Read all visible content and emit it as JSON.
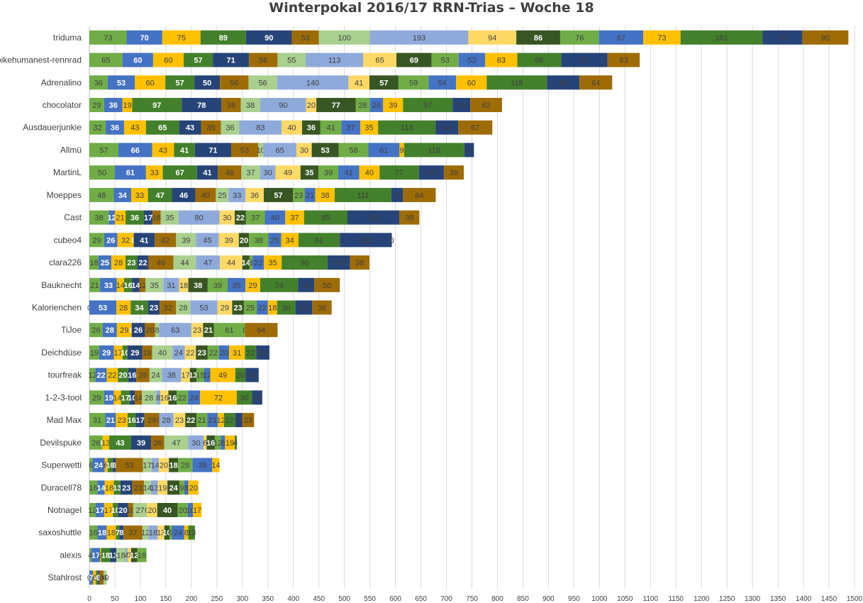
{
  "chart_data": {
    "type": "bar",
    "orientation": "horizontal",
    "stacked": true,
    "title": "Winterpokal 2016/17 RRN-Trias – Woche 18",
    "xlim": [
      0,
      1500
    ],
    "xticks": [
      0,
      50,
      100,
      150,
      200,
      250,
      300,
      350,
      400,
      450,
      500,
      550,
      600,
      650,
      700,
      750,
      800,
      850,
      900,
      950,
      1000,
      1050,
      1100,
      1150,
      1200,
      1250,
      1300,
      1350,
      1400,
      1450,
      1500
    ],
    "grid": "vertical",
    "legend": "none",
    "palette": [
      "#70ad47",
      "#4472c4",
      "#ffc000",
      "#43802b",
      "#264478",
      "#9e6c07",
      "#a9d08e",
      "#8eaadb",
      "#ffd966",
      "#375623"
    ],
    "categories": [
      "triduma",
      "bikehumanest-rennrad",
      "Adrenalino",
      "chocolator",
      "Ausdauerjunkie",
      "Allmü",
      "MartinL",
      "Moeppes",
      "Cast",
      "cubeo4",
      "clara226",
      "Bauknecht",
      "Kalorienchen",
      "TiJoe",
      "Deichdüse",
      "tourfreak",
      "1-2-3-tool",
      "Mad Max",
      "Devilspuke",
      "Superwetti",
      "Duracell78",
      "Notnagel",
      "saxoshuttle",
      "alexis",
      "Stahlrost"
    ],
    "rows": [
      [
        73,
        70,
        75,
        89,
        90,
        53,
        100,
        193,
        94,
        86,
        76,
        87,
        73,
        161,
        78,
        90
      ],
      [
        65,
        60,
        60,
        57,
        71,
        56,
        55,
        113,
        65,
        69,
        53,
        52,
        63,
        86,
        91,
        63
      ],
      [
        36,
        53,
        60,
        57,
        50,
        56,
        56,
        140,
        41,
        57,
        59,
        54,
        60,
        118,
        64,
        64
      ],
      [
        29,
        36,
        19,
        97,
        78,
        38,
        38,
        90,
        20,
        77,
        28,
        26,
        39,
        97,
        35,
        62
      ],
      [
        32,
        36,
        43,
        65,
        43,
        39,
        36,
        83,
        40,
        36,
        41,
        37,
        35,
        113,
        44,
        67
      ],
      [
        57,
        66,
        43,
        41,
        71,
        53,
        10,
        65,
        30,
        53,
        58,
        61,
        9,
        118,
        19,
        0
      ],
      [
        50,
        61,
        33,
        67,
        41,
        46,
        37,
        30,
        49,
        35,
        39,
        41,
        40,
        77,
        49,
        39
      ],
      [
        48,
        34,
        33,
        47,
        46,
        40,
        25,
        33,
        36,
        57,
        23,
        21,
        38,
        111,
        23,
        64
      ],
      [
        38,
        12,
        21,
        36,
        17,
        16,
        35,
        80,
        30,
        22,
        37,
        40,
        37,
        85,
        102,
        39
      ],
      [
        29,
        26,
        32,
        0,
        41,
        42,
        39,
        45,
        39,
        20,
        38,
        25,
        34,
        81,
        102,
        0
      ],
      [
        18,
        25,
        28,
        23,
        22,
        49,
        44,
        47,
        44,
        14,
        6,
        22,
        35,
        90,
        44,
        38
      ],
      [
        21,
        33,
        14,
        16,
        14,
        12,
        35,
        31,
        18,
        38,
        39,
        35,
        29,
        74,
        32,
        50
      ],
      [
        0,
        53,
        28,
        34,
        23,
        32,
        28,
        53,
        29,
        23,
        25,
        22,
        18,
        36,
        33,
        38
      ],
      [
        26,
        28,
        29,
        0,
        26,
        20,
        8,
        63,
        23,
        21,
        61,
        0,
        0,
        0,
        0,
        64
      ],
      [
        19,
        29,
        17,
        10,
        29,
        19,
        40,
        24,
        22,
        23,
        22,
        20,
        31,
        22,
        26,
        0
      ],
      [
        12,
        22,
        22,
        20,
        16,
        26,
        24,
        38,
        17,
        13,
        15,
        12,
        49,
        20,
        26,
        0
      ],
      [
        29,
        19,
        14,
        17,
        10,
        14,
        28,
        8,
        16,
        16,
        22,
        24,
        72,
        30,
        20,
        0
      ],
      [
        31,
        21,
        23,
        16,
        17,
        29,
        0,
        28,
        23,
        22,
        21,
        21,
        12,
        22,
        14,
        23
      ],
      [
        26,
        0,
        13,
        43,
        39,
        26,
        47,
        30,
        6,
        16,
        12,
        8,
        19,
        4,
        0,
        0
      ],
      [
        6,
        24,
        6,
        10,
        6,
        53,
        17,
        14,
        20,
        18,
        28,
        39,
        14,
        0,
        0,
        0
      ],
      [
        16,
        14,
        18,
        13,
        23,
        23,
        14,
        13,
        19,
        24,
        9,
        8,
        20,
        0,
        0,
        0
      ],
      [
        12,
        17,
        17,
        10,
        20,
        10,
        27,
        0,
        20,
        40,
        20,
        10,
        17,
        0,
        0,
        0
      ],
      [
        16,
        18,
        18,
        7,
        8,
        37,
        12,
        18,
        13,
        10,
        5,
        24,
        8,
        13,
        0,
        0
      ],
      [
        4,
        17,
        2,
        18,
        12,
        0,
        18,
        4,
        7,
        12,
        18,
        0,
        0,
        0,
        0,
        0
      ],
      [
        0,
        7,
        6,
        4,
        3,
        8,
        6,
        0,
        0,
        0,
        0,
        0,
        0,
        0,
        0,
        0
      ]
    ],
    "labels": [
      [
        "73",
        "70",
        "75",
        "89",
        "90",
        "53",
        "100",
        "193",
        "94",
        "86",
        "76",
        "87",
        "73",
        "161",
        "78",
        "90"
      ],
      [
        "65",
        "60",
        "60",
        "57",
        "71",
        "56",
        "55",
        "113",
        "65",
        "69",
        "53",
        "52",
        "63",
        "86",
        "91",
        "63"
      ],
      [
        "36",
        "53",
        "60",
        "57",
        "50",
        "56",
        "56",
        "140",
        "41",
        "57",
        "59",
        "54",
        "60",
        "118",
        "64",
        "64"
      ],
      [
        "29",
        "36",
        "19",
        "97",
        "78",
        "38",
        "38",
        "90",
        "20",
        "77",
        "28",
        "26",
        "39",
        "97",
        "35",
        "62"
      ],
      [
        "32",
        "36",
        "43",
        "65",
        "43",
        "39",
        "36",
        "83",
        "40",
        "36",
        "41",
        "37",
        "35",
        "113",
        "44",
        "67"
      ],
      [
        "57",
        "66",
        "43",
        "41",
        "71",
        "53",
        "10",
        "65",
        "30",
        "53",
        "58",
        "61",
        "9",
        "118",
        "19",
        ""
      ],
      [
        "50",
        "61",
        "33",
        "67",
        "41",
        "46",
        "37",
        "30",
        "49",
        "35",
        "39",
        "41",
        "40",
        "77",
        "49",
        "39"
      ],
      [
        "48",
        "34",
        "33",
        "47",
        "46",
        "40",
        "25",
        "33",
        "36",
        "57",
        "23",
        "21",
        "38",
        "111",
        "23",
        "64"
      ],
      [
        "38",
        "12",
        "21",
        "36",
        "17",
        "16",
        "35",
        "80",
        "30",
        "22",
        "37",
        "40",
        "37",
        "85",
        "102",
        "39"
      ],
      [
        "29",
        "26",
        "32",
        "0",
        "41",
        "42",
        "39",
        "45",
        "39",
        "20",
        "38",
        "25",
        "34",
        "81",
        "102",
        "0"
      ],
      [
        "18",
        "25",
        "28",
        "23",
        "22",
        "49",
        "44",
        "47",
        "44",
        "14",
        "6",
        "22",
        "35",
        "90",
        "44",
        "38"
      ],
      [
        "21",
        "33",
        "14",
        "16",
        "14",
        "12",
        "35",
        "31",
        "18",
        "38",
        "39",
        "35",
        "29",
        "74",
        "32",
        "50"
      ],
      [
        "0",
        "53",
        "28",
        "34",
        "23",
        "32",
        "28",
        "53",
        "29",
        "23",
        "25",
        "22",
        "18",
        "36",
        "33",
        "38"
      ],
      [
        "26",
        "28",
        "29",
        "0",
        "26",
        "20",
        "8",
        "63",
        "23",
        "21",
        "61",
        "0",
        "",
        "",
        "",
        "64"
      ],
      [
        "19",
        "29",
        "17",
        "10",
        "29",
        "19",
        "40",
        "24",
        "22",
        "23",
        "22",
        "20",
        "31",
        "22",
        "26",
        ""
      ],
      [
        "12",
        "22",
        "22",
        "20",
        "16",
        "26",
        "24",
        "38",
        "17",
        "13",
        "15",
        "12",
        "49",
        "20",
        "26",
        ""
      ],
      [
        "29",
        "19",
        "14",
        "17",
        "10",
        "14",
        "28",
        "8",
        "16",
        "16",
        "22",
        "24",
        "72",
        "30",
        "20",
        ""
      ],
      [
        "31",
        "21",
        "23",
        "16",
        "17",
        "29",
        "0",
        "28",
        "23",
        "22",
        "21",
        "21",
        "12",
        "22",
        "14",
        "23"
      ],
      [
        "26",
        "0",
        "13",
        "43",
        "39",
        "26",
        "47",
        "30",
        "6",
        "16",
        "12",
        "8",
        "19",
        "4",
        "",
        ""
      ],
      [
        "6",
        "24",
        "6",
        "10",
        "6",
        "53",
        "17",
        "14",
        "20",
        "18",
        "28",
        "39",
        "14",
        "",
        "",
        ""
      ],
      [
        "16",
        "14",
        "18",
        "13",
        "23",
        "23",
        "14",
        "13",
        "19",
        "24",
        "9",
        "8",
        "20",
        "",
        "",
        ""
      ],
      [
        "12",
        "17",
        "17",
        "10",
        "20",
        "10",
        "27",
        "0",
        "20",
        "40",
        "20",
        "10",
        "17",
        "",
        "",
        ""
      ],
      [
        "16",
        "18",
        "18",
        "7",
        "8",
        "37",
        "12",
        "18",
        "13",
        "10",
        "5",
        "24",
        "8",
        "13",
        "",
        ""
      ],
      [
        "4",
        "17",
        "2",
        "18",
        "12",
        "0",
        "18",
        "4",
        "7",
        "12",
        "18",
        "",
        "",
        "",
        "",
        ""
      ],
      [
        "0",
        "7",
        "6",
        "4",
        "3",
        "8",
        "6",
        "0",
        "",
        "",
        "",
        "",
        "",
        "",
        "",
        ""
      ]
    ]
  }
}
